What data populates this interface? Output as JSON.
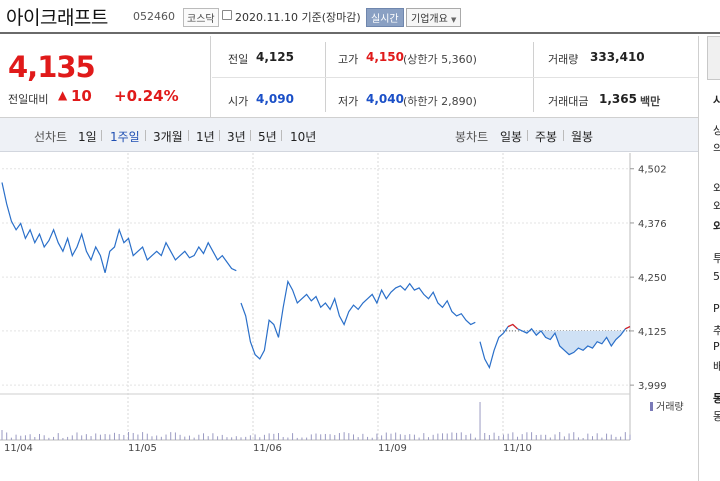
{
  "header": {
    "name": "아이크래프트",
    "code": "052460",
    "market": "코스닥",
    "date": "2020.11.10",
    "basis": "기준(장마감)",
    "realtime_button": "실시간",
    "overview_button": "기업개요"
  },
  "summary": {
    "price": "4,135",
    "change_label": "전일대비",
    "change_arrow": "▲",
    "change_value": "10",
    "change_pct": "+0.24%",
    "prev_close_label": "전일",
    "prev_close": "4,125",
    "high_label": "고가",
    "high": "4,150",
    "upper_limit": "(상한가 5,360)",
    "volume_label": "거래량",
    "volume": "333,410",
    "open_label": "시가",
    "open": "4,090",
    "low_label": "저가",
    "low": "4,040",
    "lower_limit": "(하한가 2,890)",
    "amount_label": "거래대금",
    "amount": "1,365",
    "amount_unit": "백만"
  },
  "toolbar": {
    "line_chart_label": "선차트",
    "periods": [
      "1일",
      "1주일",
      "3개월",
      "1년",
      "3년",
      "5년",
      "10년"
    ],
    "active_period": "1주일",
    "candle_chart_label": "봉차트",
    "candles": [
      "일봉",
      "주봉",
      "월봉"
    ]
  },
  "chart_data": {
    "type": "line",
    "y_ticks": [
      "4,502",
      "4,376",
      "4,250",
      "4,125",
      "3,999"
    ],
    "ylim": [
      3990,
      4520
    ],
    "x_labels": [
      "11/04",
      "11/05",
      "11/06",
      "11/09",
      "11/10"
    ],
    "reference_price": 4125,
    "volume_legend": "거래량",
    "series": [
      {
        "values": [
          4470,
          4420,
          4380,
          4360,
          4375,
          4340,
          4360,
          4330,
          4350,
          4320,
          4335,
          4360,
          4330,
          4310,
          4340,
          4300,
          4320,
          4350,
          4310,
          4290,
          4320,
          4300,
          4260,
          4310,
          4320,
          4360,
          4330,
          4340,
          4300,
          4310,
          4320,
          4290,
          4300,
          4310,
          4300,
          4330,
          4310,
          4290,
          4300,
          4310,
          4295,
          4300,
          4320,
          4305,
          4330,
          4310,
          4290,
          4300,
          4285,
          4270,
          4265,
          4190,
          4160,
          4100,
          4070,
          4060,
          4080,
          4150,
          4140,
          4110,
          4180,
          4240,
          4220,
          4190,
          4200,
          4210,
          4195,
          4205,
          4180,
          4190,
          4175,
          4200,
          4160,
          4140,
          4170,
          4185,
          4175,
          4190,
          4200,
          4210,
          4190,
          4220,
          4200,
          4215,
          4225,
          4230,
          4220,
          4235,
          4220,
          4225,
          4210,
          4200,
          4215,
          4190,
          4180,
          4195,
          4170,
          4160,
          4165,
          4150,
          4140,
          4145,
          4100,
          4060,
          4040,
          4080,
          4110,
          4120,
          4135,
          4140,
          4130,
          4125,
          4120,
          4130,
          4115,
          4125,
          4110,
          4105,
          4120,
          4090,
          4080,
          4070,
          4075,
          4085,
          4080,
          4090,
          4085,
          4100,
          4095,
          4110,
          4090,
          4105,
          4115,
          4130,
          4135
        ]
      }
    ]
  },
  "sidebar": {
    "lines": [
      "시",
      "상",
      "의",
      "외",
      "외",
      "외",
      "투",
      "5(",
      "P",
      "추",
      "P",
      "배",
      "동",
      "동"
    ]
  }
}
